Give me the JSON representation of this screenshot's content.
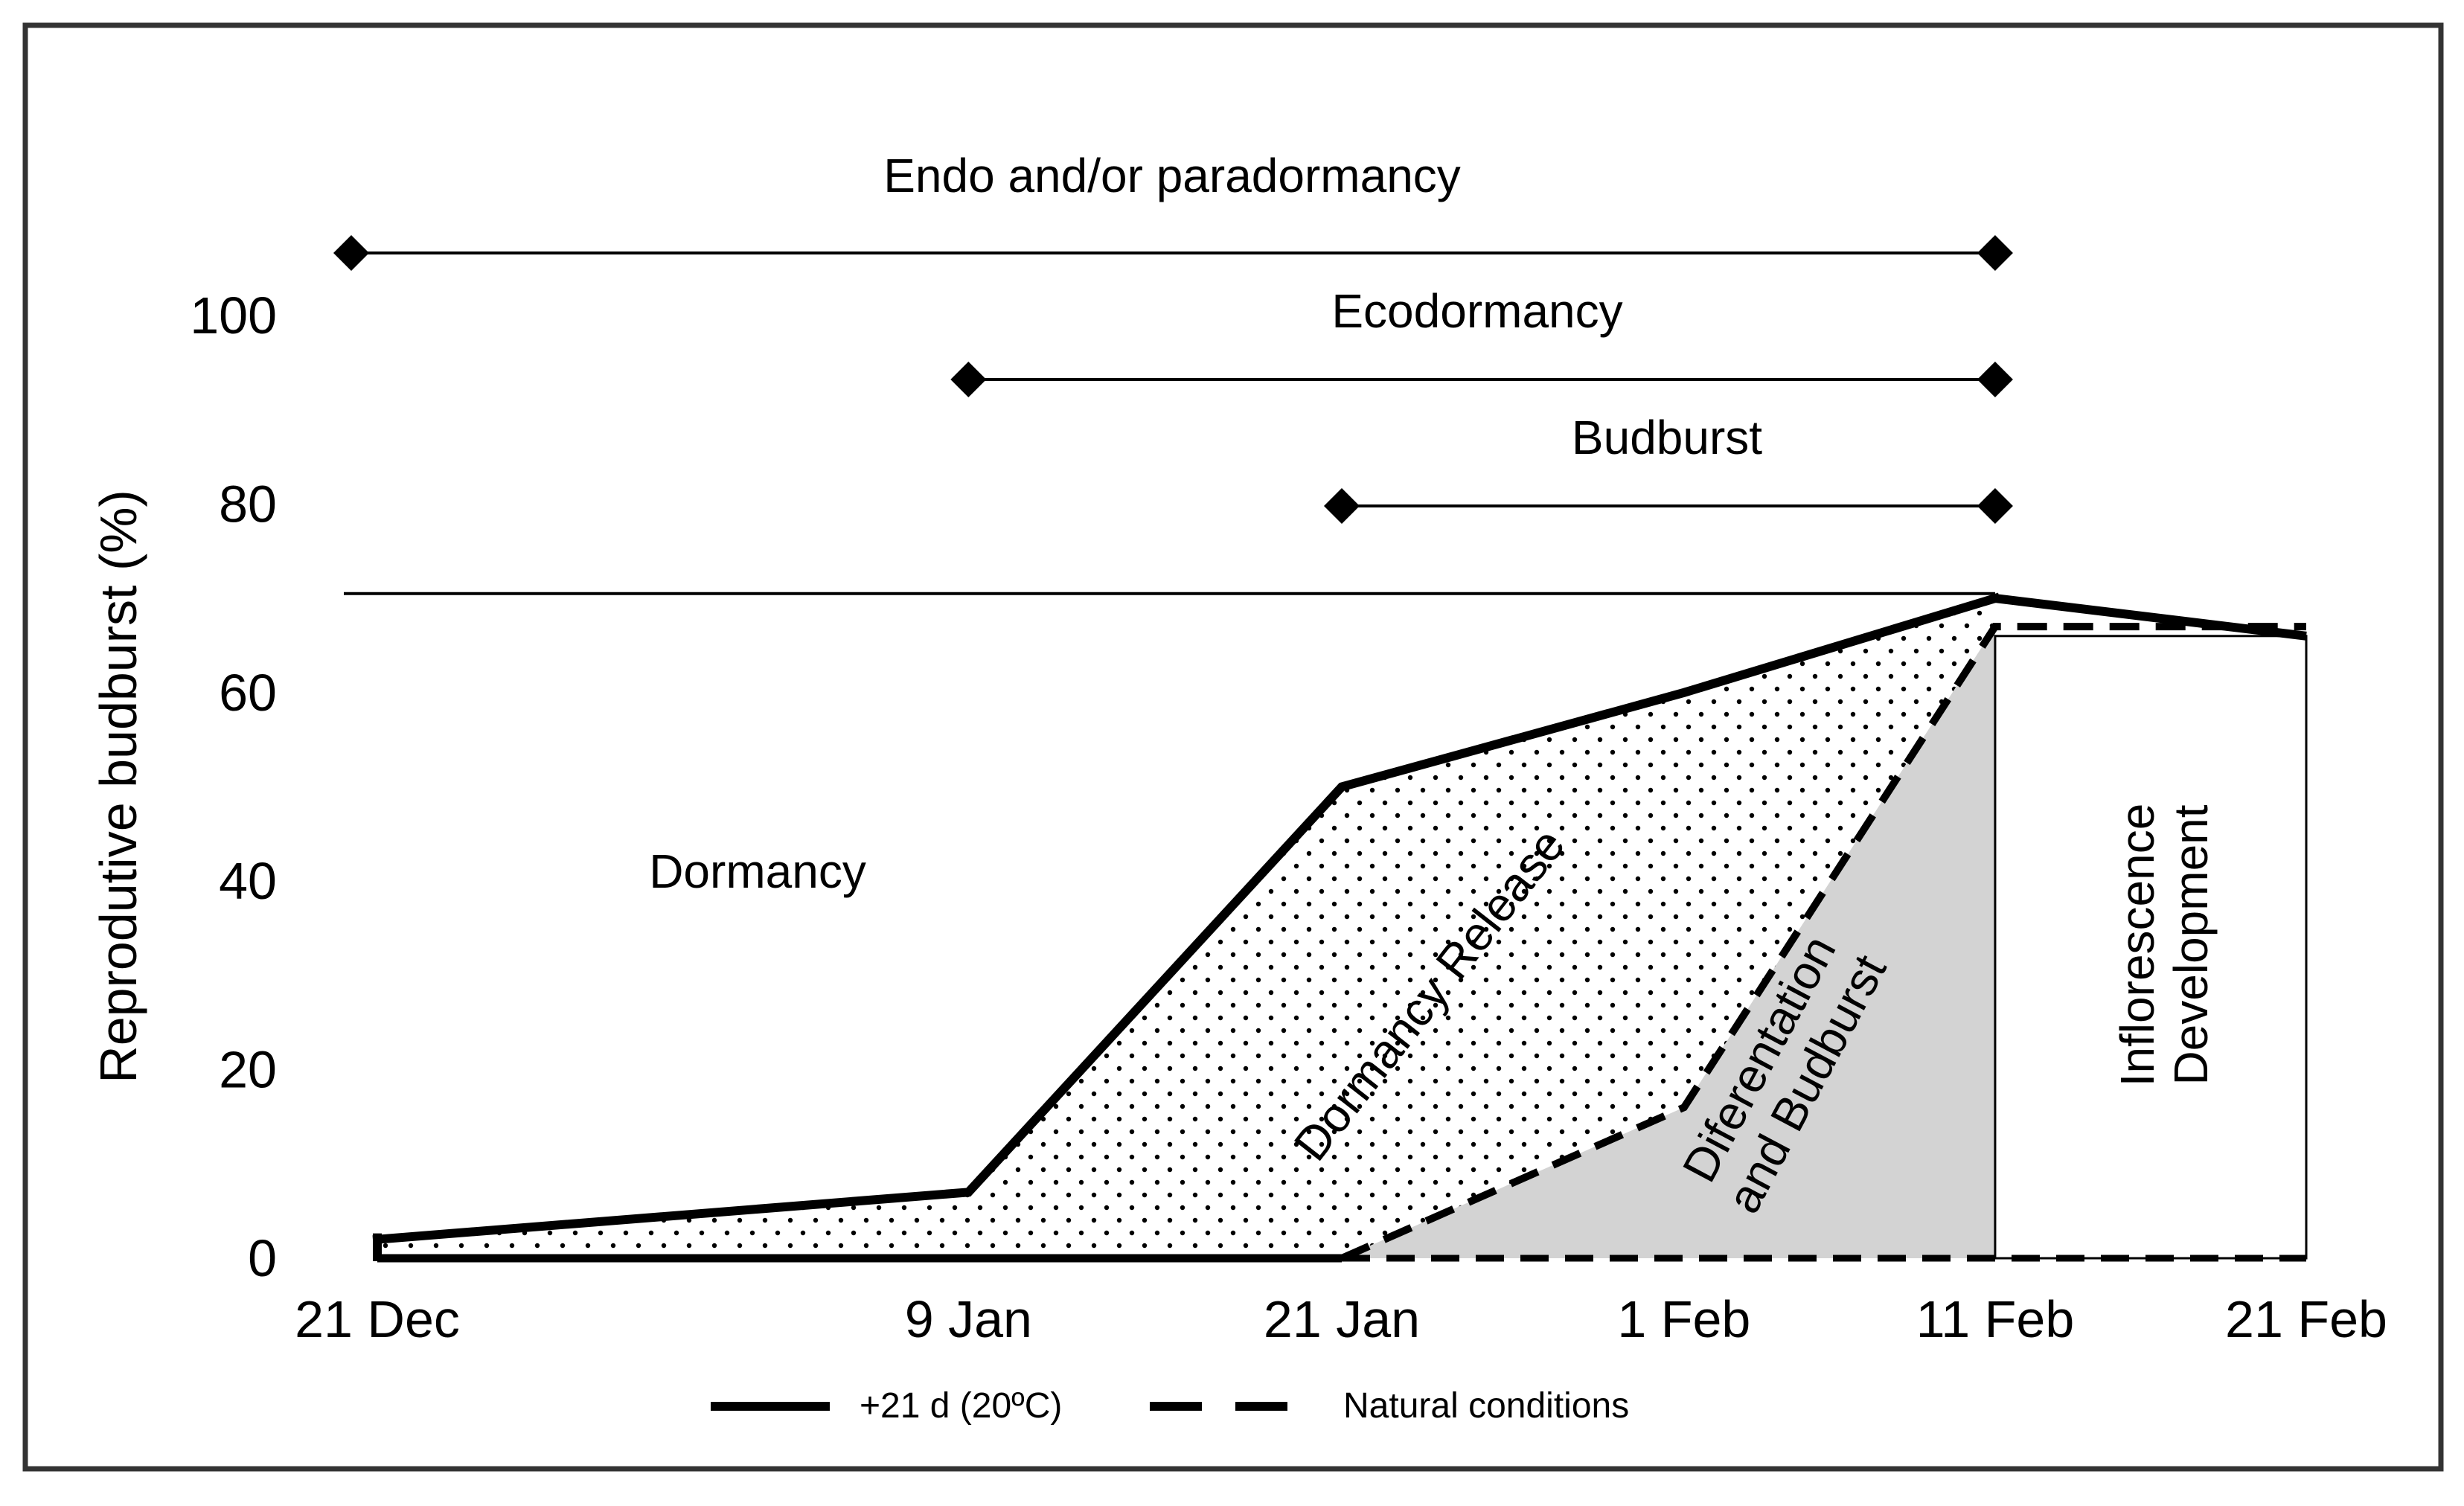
{
  "chart_data": {
    "type": "area",
    "ylabel": "Reprodutive budburst (%)",
    "ylim": [
      0,
      100
    ],
    "yticks": [
      0,
      20,
      40,
      60,
      80,
      100
    ],
    "x_ticks": [
      {
        "label": "21 Dec",
        "day": 0
      },
      {
        "label": "9 Jan",
        "day": 19
      },
      {
        "label": "21 Jan",
        "day": 31
      },
      {
        "label": "1 Feb",
        "day": 42
      },
      {
        "label": "11 Feb",
        "day": 52
      },
      {
        "label": "21 Feb",
        "day": 62
      }
    ],
    "grid": false,
    "legend_position": "bottom",
    "series": [
      {
        "name": "+21 d (20ºC)",
        "style": "solid",
        "points": [
          {
            "x": "21 Dec",
            "y": 2
          },
          {
            "x": "9 Jan",
            "y": 7
          },
          {
            "x": "21 Jan",
            "y": 50
          },
          {
            "x": "1 Feb",
            "y": 60
          },
          {
            "x": "11 Feb",
            "y": 70
          },
          {
            "x": "21 Feb",
            "y": 66
          }
        ]
      },
      {
        "name": "Natural conditions",
        "style": "dashed",
        "points": [
          {
            "x": "21 Dec",
            "y": 0
          },
          {
            "x": "9 Jan",
            "y": 0
          },
          {
            "x": "21 Jan",
            "y": 0
          },
          {
            "x": "1 Feb",
            "y": 16
          },
          {
            "x": "11 Feb",
            "y": 67
          },
          {
            "x": "21 Feb",
            "y": 67
          }
        ]
      }
    ],
    "phase_bars": [
      {
        "label": "Endo and/or paradormancy",
        "start": "21 Dec",
        "end": "11 Feb"
      },
      {
        "label": "Ecodormancy",
        "start": "9 Jan",
        "end": "11 Feb"
      },
      {
        "label": "Budburst",
        "start": "21 Jan",
        "end": "11 Feb"
      }
    ],
    "regions": [
      {
        "label": "Dormancy",
        "fill": "none"
      },
      {
        "label": "Dormancy Release",
        "fill": "dotted"
      },
      {
        "label": "Diferentation and Budburst",
        "fill": "#d3d3d3"
      },
      {
        "label": "Inflorescence Development",
        "fill": "#ffffff"
      }
    ],
    "colors": {
      "lines": "#000000",
      "shaded_region": "#d3d3d3",
      "frame": "#333333"
    }
  }
}
